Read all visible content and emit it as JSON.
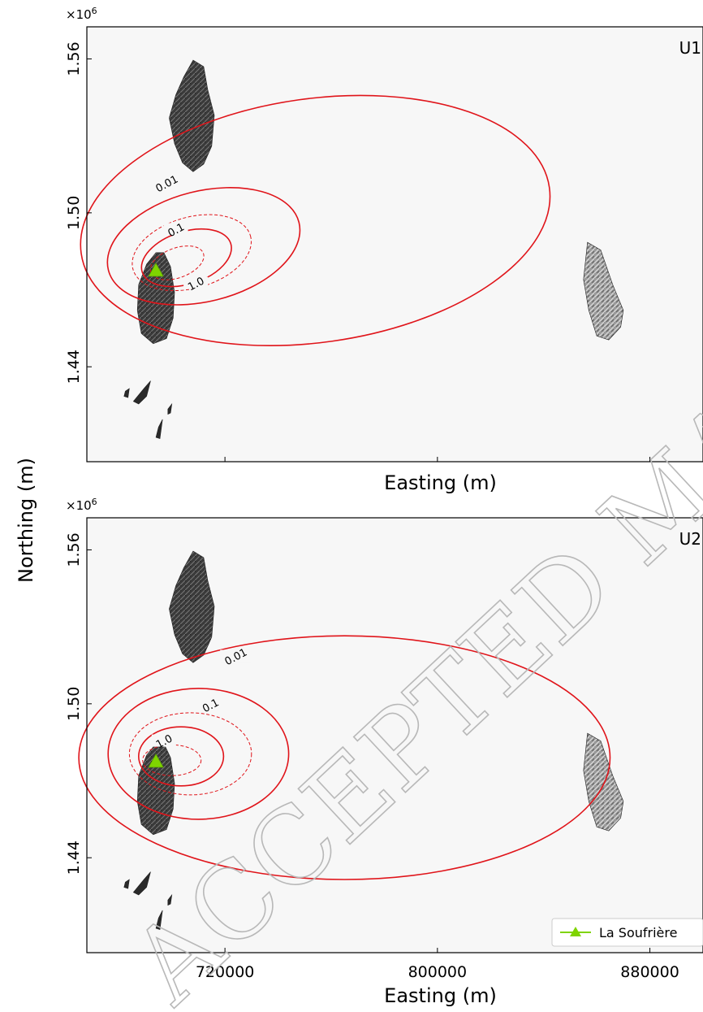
{
  "figure": {
    "ylabel": "Northing (m)",
    "watermark": "ACCEPTED MANUSCRIPT"
  },
  "chart_data": [
    {
      "type": "contour",
      "panel_label": "U1",
      "xlabel": "Easting (m)",
      "ylabel": "Northing (m)",
      "y_scale_text": "×10",
      "y_scale_exp": "6",
      "xlim": [
        668000,
        900000
      ],
      "ylim": [
        1.403,
        1.5725
      ],
      "y_unit_multiplier": 1000000,
      "x_ticks": [
        720000,
        800000,
        880000
      ],
      "x_tick_labels_visible": false,
      "y_ticks": [
        1.44,
        1.5,
        1.56
      ],
      "y_tick_labels": [
        "1.44",
        "1.50",
        "1.56"
      ],
      "vent": {
        "name": "La Soufrière",
        "x": 694000,
        "y": 1.4775,
        "color": "#7fd400"
      },
      "contours": [
        {
          "level": "0.01",
          "labeled": true,
          "style": "solid",
          "cx": 754000,
          "cy": 1.497,
          "rx": 89000,
          "ry": 0.0475,
          "tilt_deg": -8,
          "label_x": 698000,
          "label_y": 1.5115
        },
        {
          "level": "0.1",
          "labeled": true,
          "style": "solid",
          "cx": 712000,
          "cy": 1.487,
          "rx": 37000,
          "ry": 0.0215,
          "tilt_deg": -14,
          "label_x": 701500,
          "label_y": 1.4935
        },
        {
          "level": "",
          "labeled": false,
          "style": "dashed",
          "cx": 707500,
          "cy": 1.4845,
          "rx": 23000,
          "ry": 0.0138,
          "tilt_deg": -16
        },
        {
          "level": "1.0",
          "labeled": true,
          "style": "solid",
          "cx": 705500,
          "cy": 1.4825,
          "rx": 17500,
          "ry": 0.0102,
          "tilt_deg": -18,
          "label_x": 709000,
          "label_y": 1.4725
        },
        {
          "level": "",
          "labeled": false,
          "style": "dashed",
          "cx": 702000,
          "cy": 1.4805,
          "rx": 10500,
          "ry": 0.0058,
          "tilt_deg": -20
        }
      ]
    },
    {
      "type": "contour",
      "panel_label": "U2",
      "xlabel": "Easting (m)",
      "ylabel": "Northing (m)",
      "y_scale_text": "×10",
      "y_scale_exp": "6",
      "xlim": [
        668000,
        900000
      ],
      "ylim": [
        1.403,
        1.5725
      ],
      "y_unit_multiplier": 1000000,
      "x_ticks": [
        720000,
        800000,
        880000
      ],
      "x_tick_labels": [
        "720000",
        "800000",
        "880000"
      ],
      "y_ticks": [
        1.44,
        1.5,
        1.56
      ],
      "y_tick_labels": [
        "1.44",
        "1.50",
        "1.56"
      ],
      "vent": {
        "name": "La Soufrière",
        "x": 694000,
        "y": 1.4775,
        "color": "#7fd400"
      },
      "legend": {
        "position": "bottom-right",
        "entries": [
          "La Soufrière"
        ]
      },
      "contours": [
        {
          "level": "0.01",
          "labeled": true,
          "style": "solid",
          "cx": 765000,
          "cy": 1.479,
          "rx": 100000,
          "ry": 0.0475,
          "tilt_deg": 0,
          "label_x": 724000,
          "label_y": 1.5185
        },
        {
          "level": "0.1",
          "labeled": true,
          "style": "solid",
          "cx": 710000,
          "cy": 1.4805,
          "rx": 34000,
          "ry": 0.0255,
          "tilt_deg": 0,
          "label_x": 714500,
          "label_y": 1.4995
        },
        {
          "level": "",
          "labeled": false,
          "style": "dashed",
          "cx": 707000,
          "cy": 1.4805,
          "rx": 23000,
          "ry": 0.016,
          "tilt_deg": 0
        },
        {
          "level": "1.0",
          "labeled": true,
          "style": "solid",
          "cx": 703500,
          "cy": 1.4795,
          "rx": 16000,
          "ry": 0.0115,
          "tilt_deg": 0,
          "label_x": 697000,
          "label_y": 1.4855
        },
        {
          "level": "",
          "labeled": false,
          "style": "dashed",
          "cx": 700000,
          "cy": 1.478,
          "rx": 11000,
          "ry": 0.006,
          "tilt_deg": 0
        }
      ]
    }
  ]
}
